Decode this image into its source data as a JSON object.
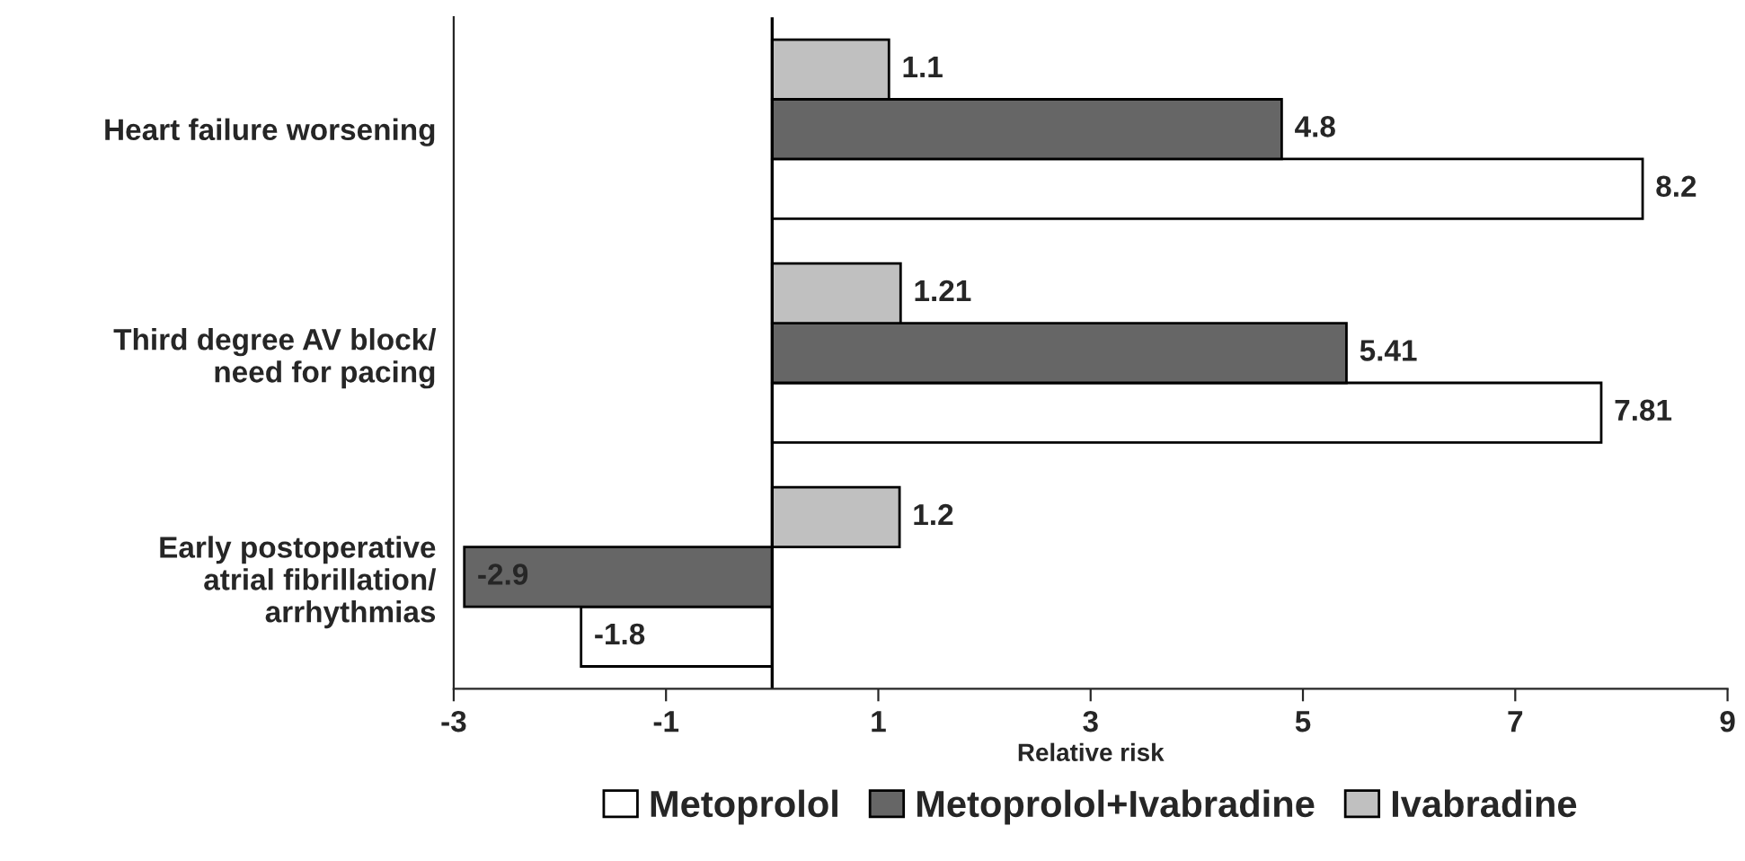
{
  "chart_data": {
    "type": "bar",
    "orientation": "horizontal",
    "xlabel": "Relative risk",
    "categories": [
      "Heart failure worsening",
      "Third degree AV block/\nneed for pacing",
      "Early postoperative\natrial fibrillation/\narrhythmias"
    ],
    "series": [
      {
        "name": "Metoprolol",
        "color": "#ffffff",
        "values": [
          8.2,
          7.81,
          -1.8
        ]
      },
      {
        "name": "Metoprolol+Ivabradine",
        "color": "#666666",
        "values": [
          4.8,
          5.41,
          -2.9
        ]
      },
      {
        "name": "Ivabradine",
        "color": "#c0c0c0",
        "values": [
          1.1,
          1.21,
          1.2
        ]
      }
    ],
    "xlim": [
      -3,
      9
    ],
    "xticks": [
      -3,
      -1,
      1,
      3,
      5,
      7,
      9
    ],
    "ref_lines": [
      {
        "axis": "x",
        "value": 0,
        "color": "#000000"
      }
    ],
    "data_labels": true,
    "legend": "bottom",
    "grid": false
  }
}
